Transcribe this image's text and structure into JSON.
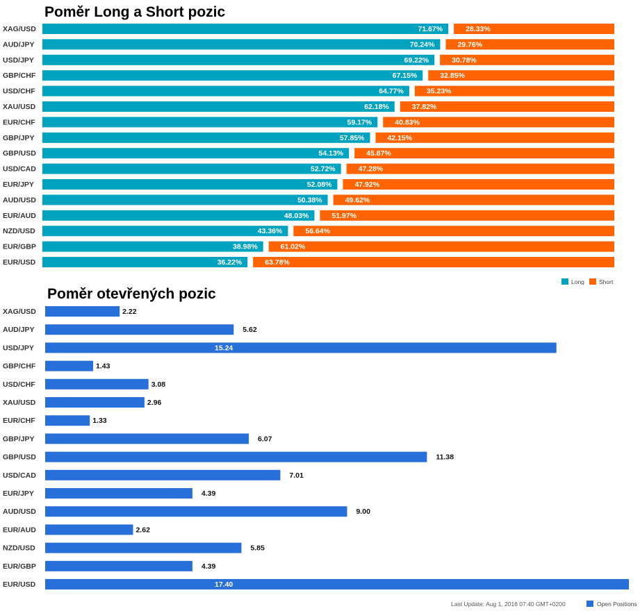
{
  "chart_data": [
    {
      "type": "bar",
      "stacked": true,
      "orientation": "horizontal",
      "title": "Poměr Long a Short pozic",
      "categories": [
        "XAG/USD",
        "AUD/JPY",
        "USD/JPY",
        "GBP/CHF",
        "USD/CHF",
        "XAU/USD",
        "EUR/CHF",
        "GBP/JPY",
        "GBP/USD",
        "USD/CAD",
        "EUR/JPY",
        "AUD/USD",
        "EUR/AUD",
        "NZD/USD",
        "EUR/GBP",
        "EUR/USD"
      ],
      "series": [
        {
          "name": "Long",
          "color": "#00a3bf",
          "values": [
            71.67,
            70.24,
            69.22,
            67.15,
            64.77,
            62.18,
            59.17,
            57.85,
            54.13,
            52.72,
            52.08,
            50.38,
            48.03,
            43.36,
            38.98,
            36.22
          ]
        },
        {
          "name": "Short",
          "color": "#ff6400",
          "values": [
            28.33,
            29.76,
            30.78,
            32.85,
            35.23,
            37.82,
            40.83,
            42.15,
            45.87,
            47.28,
            47.92,
            49.62,
            51.97,
            56.64,
            61.02,
            63.78
          ]
        }
      ],
      "value_suffix": "%",
      "xlim": [
        0,
        100
      ],
      "legend": {
        "position": "bottom-right",
        "entries": [
          "Long",
          "Short"
        ]
      }
    },
    {
      "type": "bar",
      "orientation": "horizontal",
      "title": "Poměr otevřených pozic",
      "categories": [
        "XAG/USD",
        "AUD/JPY",
        "USD/JPY",
        "GBP/CHF",
        "USD/CHF",
        "XAU/USD",
        "EUR/CHF",
        "GBP/JPY",
        "GBP/USD",
        "USD/CAD",
        "EUR/JPY",
        "AUD/USD",
        "EUR/AUD",
        "NZD/USD",
        "EUR/GBP",
        "EUR/USD"
      ],
      "series": [
        {
          "name": "Open Positions",
          "color": "#2870d9",
          "values": [
            2.22,
            5.62,
            15.24,
            1.43,
            3.08,
            2.96,
            1.33,
            6.07,
            11.38,
            7.01,
            4.39,
            9.0,
            2.62,
            5.85,
            4.39,
            17.4
          ]
        }
      ],
      "labels": [
        "2.22",
        "5.62",
        "15.24",
        "1.43",
        "3.08",
        "2.96",
        "1.33",
        "6.07",
        "11.38",
        "7.01",
        "4.39",
        "9.00",
        "2.62",
        "5.85",
        "4.39",
        "17.40"
      ],
      "xlim": [
        0,
        17.4
      ],
      "legend": {
        "position": "bottom-right",
        "entries": [
          "Open Positions"
        ]
      },
      "footer": "Last Update: Aug 1, 2016 07:40 GMT+0200"
    }
  ]
}
